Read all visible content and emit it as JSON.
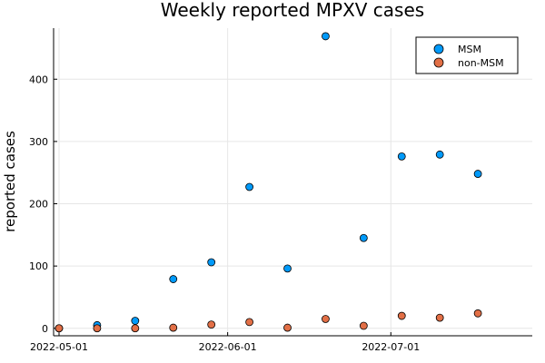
{
  "chart_data": {
    "type": "scatter",
    "title": "Weekly reported MPXV cases",
    "xlabel": "",
    "ylabel": "reported cases",
    "x_ticks": [
      "2022-05-01",
      "2022-06-01",
      "2022-07-01"
    ],
    "y_ticks": [
      0,
      100,
      200,
      300,
      400
    ],
    "xlim": [
      "2022-04-30",
      "2022-07-27"
    ],
    "ylim": [
      -12,
      482
    ],
    "grid": true,
    "legend_position": "top-right",
    "x": [
      "2022-05-01",
      "2022-05-08",
      "2022-05-15",
      "2022-05-22",
      "2022-05-29",
      "2022-06-05",
      "2022-06-12",
      "2022-06-19",
      "2022-06-26",
      "2022-07-03",
      "2022-07-10",
      "2022-07-17"
    ],
    "series": [
      {
        "name": "MSM",
        "color": "#009AFA",
        "values": [
          0,
          5,
          12,
          79,
          106,
          227,
          96,
          469,
          145,
          276,
          279,
          248
        ]
      },
      {
        "name": "non-MSM",
        "color": "#E26F46",
        "values": [
          0,
          0,
          0,
          1,
          6,
          10,
          1,
          15,
          4,
          20,
          17,
          24
        ]
      }
    ]
  }
}
